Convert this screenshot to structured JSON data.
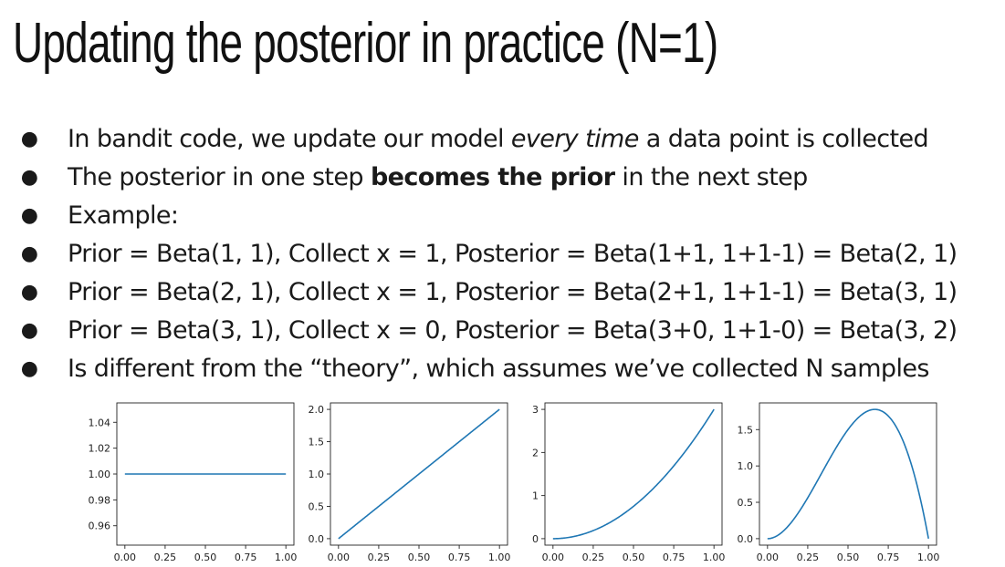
{
  "slide": {
    "title": "Updating the posterior in practice (N=1)",
    "bullets": [
      [
        {
          "t": "In bandit code, we update our model "
        },
        {
          "t": "every time",
          "i": true
        },
        {
          "t": " a data point is collected"
        }
      ],
      [
        {
          "t": "The posterior in one step "
        },
        {
          "t": "becomes the prior",
          "b": true
        },
        {
          "t": " in the next step"
        }
      ],
      [
        {
          "t": "Example:"
        }
      ],
      [
        {
          "t": "Prior = Beta(1, 1), Collect x = 1, Posterior = Beta(1+1, 1+1-1) = Beta(2, 1)"
        }
      ],
      [
        {
          "t": "Prior = Beta(2, 1), Collect x = 1, Posterior = Beta(2+1, 1+1-1) = Beta(3, 1)"
        }
      ],
      [
        {
          "t": "Prior = Beta(3, 1), Collect x = 0, Posterior = Beta(3+0, 1+1-0) = Beta(3, 2)"
        }
      ],
      [
        {
          "t": "Is different from the “theory”, which assumes we’ve collected N samples"
        }
      ]
    ],
    "bullet_glyph": "●"
  },
  "chart_data": [
    {
      "type": "line",
      "title": "",
      "xlabel": "",
      "ylabel": "",
      "series": [
        {
          "color": "#1f77b4",
          "a": 1,
          "b": 1
        }
      ],
      "xlim": [
        -0.05,
        1.05
      ],
      "ylim": [
        0.945,
        1.055
      ],
      "xticks": [
        0.0,
        0.25,
        0.5,
        0.75,
        1.0
      ],
      "xticklabels": [
        "0.00",
        "0.25",
        "0.50",
        "0.75",
        "1.00"
      ],
      "yticks": [
        0.96,
        0.98,
        1.0,
        1.02,
        1.04
      ],
      "yticklabels": [
        "0.96",
        "0.98",
        "1.00",
        "1.02",
        "1.04"
      ],
      "grid": false
    },
    {
      "type": "line",
      "title": "",
      "xlabel": "",
      "ylabel": "",
      "series": [
        {
          "color": "#1f77b4",
          "a": 2,
          "b": 1
        }
      ],
      "xlim": [
        -0.05,
        1.05
      ],
      "ylim": [
        -0.1,
        2.1
      ],
      "xticks": [
        0.0,
        0.25,
        0.5,
        0.75,
        1.0
      ],
      "xticklabels": [
        "0.00",
        "0.25",
        "0.50",
        "0.75",
        "1.00"
      ],
      "yticks": [
        0.0,
        0.5,
        1.0,
        1.5,
        2.0
      ],
      "yticklabels": [
        "0.0",
        "0.5",
        "1.0",
        "1.5",
        "2.0"
      ],
      "grid": false
    },
    {
      "type": "line",
      "title": "",
      "xlabel": "",
      "ylabel": "",
      "series": [
        {
          "color": "#1f77b4",
          "a": 3,
          "b": 1
        }
      ],
      "xlim": [
        -0.05,
        1.05
      ],
      "ylim": [
        -0.15,
        3.15
      ],
      "xticks": [
        0.0,
        0.25,
        0.5,
        0.75,
        1.0
      ],
      "xticklabels": [
        "0.00",
        "0.25",
        "0.50",
        "0.75",
        "1.00"
      ],
      "yticks": [
        0,
        1,
        2,
        3
      ],
      "yticklabels": [
        "0",
        "1",
        "2",
        "3"
      ],
      "grid": false
    },
    {
      "type": "line",
      "title": "",
      "xlabel": "",
      "ylabel": "",
      "series": [
        {
          "color": "#1f77b4",
          "a": 3,
          "b": 2
        }
      ],
      "xlim": [
        -0.05,
        1.05
      ],
      "ylim": [
        -0.089,
        1.867
      ],
      "xticks": [
        0.0,
        0.25,
        0.5,
        0.75,
        1.0
      ],
      "xticklabels": [
        "0.00",
        "0.25",
        "0.50",
        "0.75",
        "1.00"
      ],
      "yticks": [
        0.0,
        0.5,
        1.0,
        1.5
      ],
      "yticklabels": [
        "0.0",
        "0.5",
        "1.0",
        "1.5"
      ],
      "grid": false
    }
  ]
}
